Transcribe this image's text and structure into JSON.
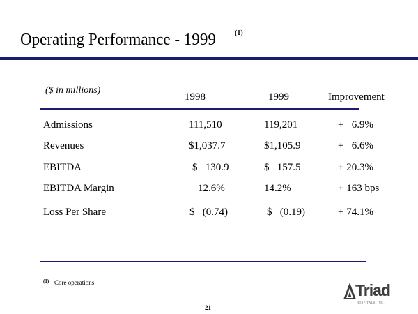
{
  "title": {
    "text": "Operating Performance - 1999",
    "footnote_marker": "(1)"
  },
  "table": {
    "units_label": "($ in millions)",
    "columns": [
      "1998",
      "1999",
      "Improvement"
    ],
    "rows": [
      {
        "label": "Admissions",
        "v1998": "111,510",
        "v1999": "119,201",
        "improvement": "+   6.9%"
      },
      {
        "label": "Revenues",
        "v1998": "$1,037.7",
        "v1999": "$1,105.9",
        "improvement": "+   6.6%"
      },
      {
        "label": "EBITDA",
        "v1998": "$   130.9",
        "v1999": "$   157.5",
        "improvement": "+ 20.3%"
      },
      {
        "label": "EBITDA Margin",
        "v1998": "12.6%",
        "v1999": "14.2%",
        "improvement": "+ 163 bps"
      },
      {
        "label": "Loss Per Share",
        "v1998": "$   (0.74)",
        "v1999": "$   (0.19)",
        "improvement": "+ 74.1%"
      }
    ]
  },
  "footnote": {
    "marker": "(1)",
    "text": "Core operations"
  },
  "page_number": "21",
  "logo": {
    "name": "Triad",
    "tagline": "HOSPITALS, INC."
  },
  "colors": {
    "rule": "#1a1a6e",
    "logo_text": "#3d3d3d"
  }
}
